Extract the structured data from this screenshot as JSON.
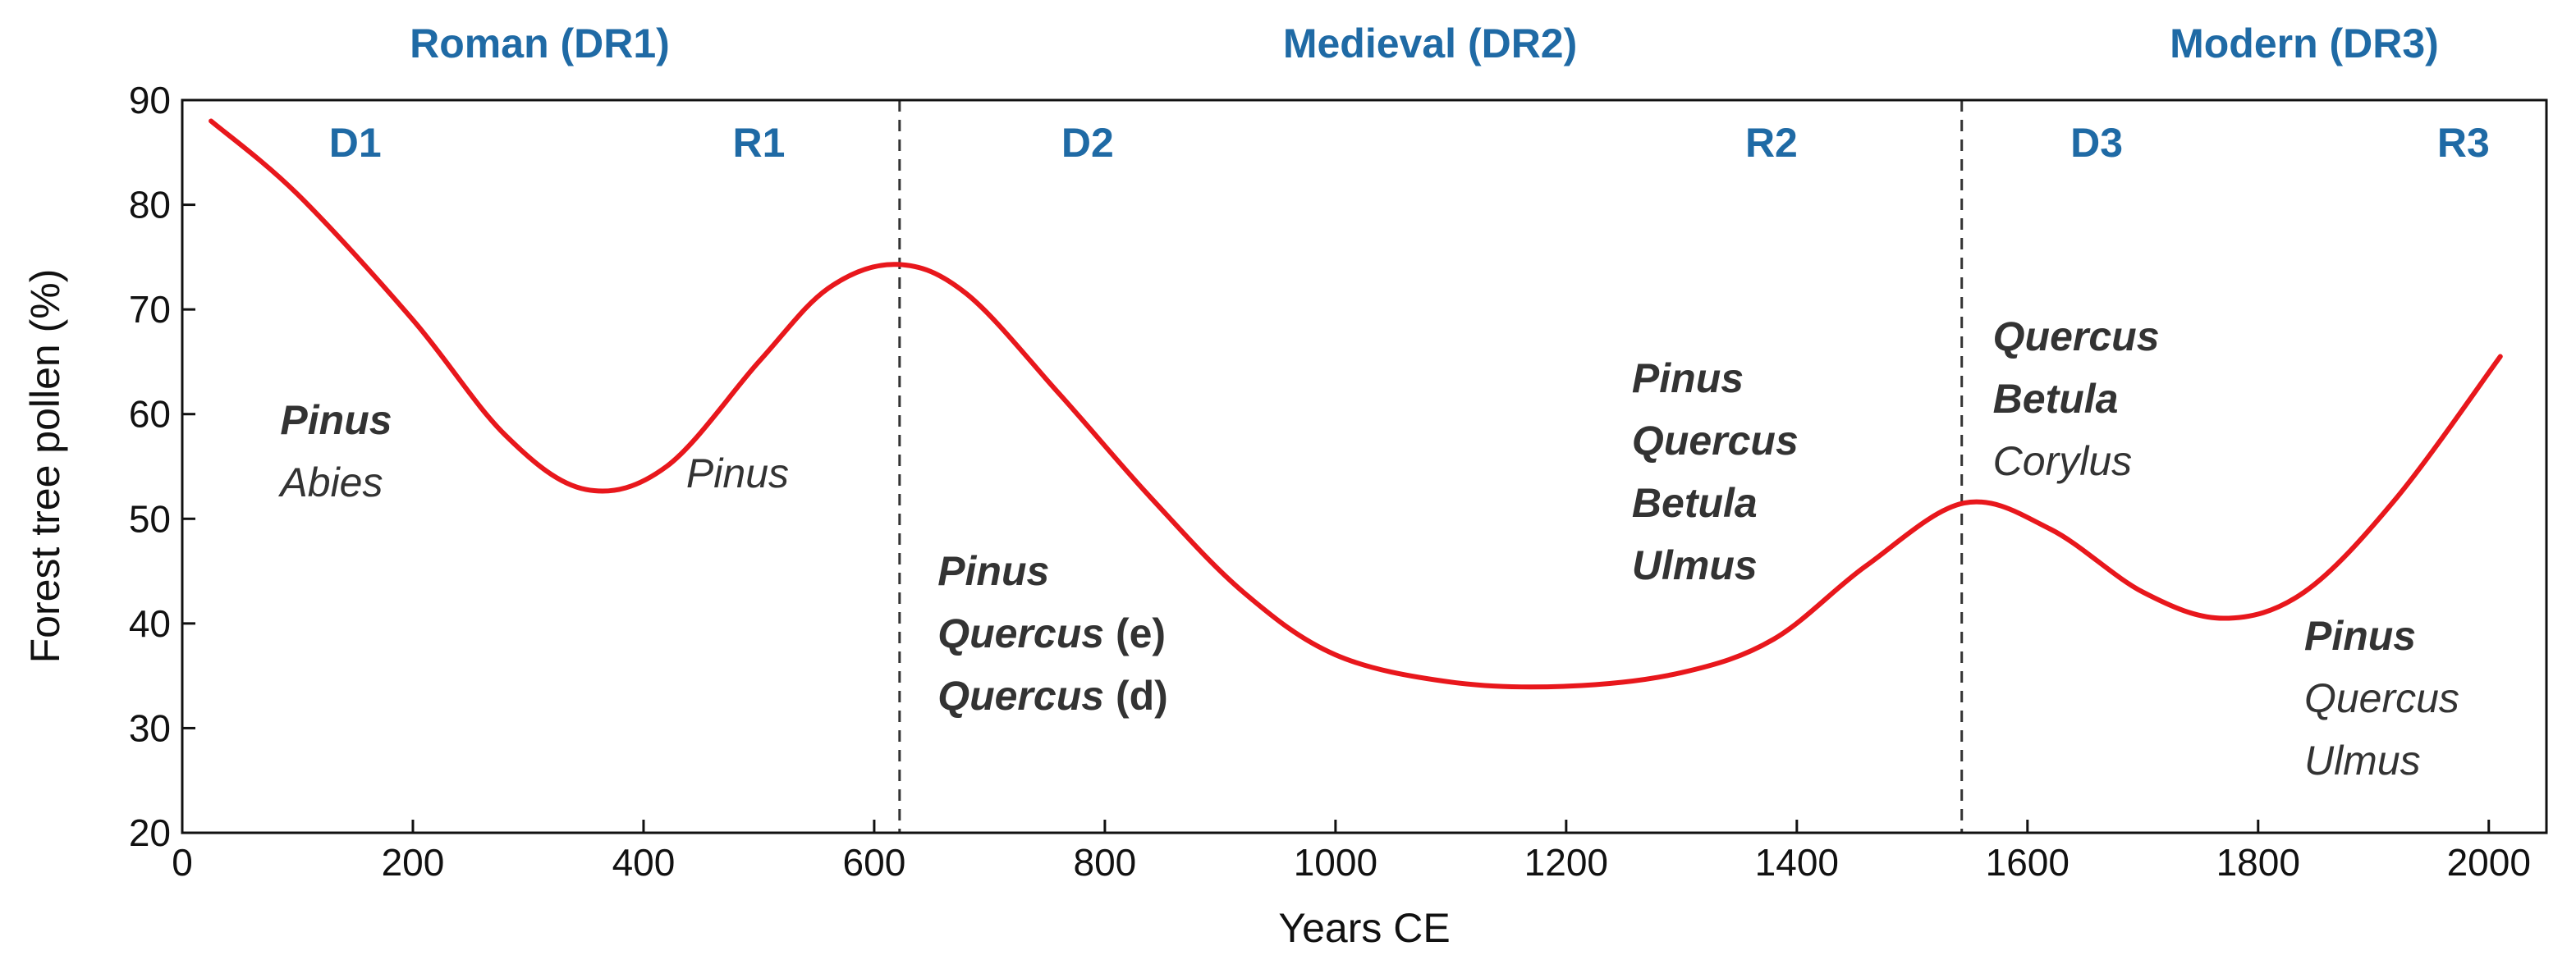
{
  "colors": {
    "curve": "#e8171c",
    "period_text": "#1f6aa5",
    "axis": "#111111",
    "taxa_text": "#333333",
    "divider": "#333333"
  },
  "chart_data": {
    "type": "line",
    "title": "",
    "xlabel": "Years CE",
    "ylabel": "Forest tree pollen (%)",
    "xlim": [
      0,
      2050
    ],
    "ylim": [
      20,
      90
    ],
    "xticks": [
      0,
      200,
      400,
      600,
      800,
      1000,
      1200,
      1400,
      1600,
      1800,
      2000
    ],
    "yticks": [
      20,
      30,
      40,
      50,
      60,
      70,
      80,
      90
    ],
    "grid": false,
    "series": [
      {
        "name": "Forest tree pollen",
        "x": [
          25,
          100,
          200,
          280,
          350,
          420,
          500,
          560,
          620,
          680,
          760,
          840,
          920,
          1000,
          1100,
          1200,
          1300,
          1380,
          1460,
          1545,
          1620,
          1700,
          1770,
          1840,
          1920,
          2010
        ],
        "y": [
          88,
          81,
          69,
          58,
          52.8,
          55,
          65,
          72,
          74.3,
          71.5,
          62,
          52,
          43,
          37,
          34.4,
          34,
          35.3,
          38.5,
          45.5,
          51.5,
          49,
          43,
          40.5,
          43,
          52,
          65.5
        ]
      }
    ],
    "dividers": [
      622,
      1543
    ],
    "periods": [
      {
        "label": "Roman (DR1)",
        "x": 310
      },
      {
        "label": "Medieval (DR2)",
        "x": 1082
      },
      {
        "label": "Modern (DR3)",
        "x": 1840
      }
    ],
    "phases": [
      {
        "label": "D1",
        "x": 150,
        "y": 86
      },
      {
        "label": "R1",
        "x": 500,
        "y": 86
      },
      {
        "label": "D2",
        "x": 785,
        "y": 86
      },
      {
        "label": "R2",
        "x": 1378,
        "y": 86
      },
      {
        "label": "D3",
        "x": 1660,
        "y": 86
      },
      {
        "label": "R3",
        "x": 1978,
        "y": 86
      }
    ],
    "taxa_groups": [
      {
        "name": "d1",
        "x": 85,
        "y": 59.5,
        "lines": [
          {
            "text": "Pinus",
            "bold": true,
            "suffix": ""
          },
          {
            "text": "Abies",
            "bold": false,
            "suffix": ""
          }
        ]
      },
      {
        "name": "r1",
        "x": 437,
        "y": 54.4,
        "lines": [
          {
            "text": "Pinus",
            "bold": false,
            "suffix": ""
          }
        ]
      },
      {
        "name": "d2",
        "x": 655,
        "y": 45.1,
        "lines": [
          {
            "text": "Pinus",
            "bold": true,
            "suffix": ""
          },
          {
            "text": "Quercus",
            "bold": true,
            "suffix": " (e)"
          },
          {
            "text": "Quercus",
            "bold": true,
            "suffix": " (d)"
          }
        ]
      },
      {
        "name": "r2",
        "x": 1257,
        "y": 63.5,
        "lines": [
          {
            "text": "Pinus",
            "bold": true,
            "suffix": ""
          },
          {
            "text": "Quercus",
            "bold": true,
            "suffix": ""
          },
          {
            "text": "Betula",
            "bold": true,
            "suffix": ""
          },
          {
            "text": "Ulmus",
            "bold": true,
            "suffix": ""
          }
        ]
      },
      {
        "name": "d3",
        "x": 1570,
        "y": 67.5,
        "lines": [
          {
            "text": "Quercus",
            "bold": true,
            "suffix": ""
          },
          {
            "text": "Betula",
            "bold": true,
            "suffix": ""
          },
          {
            "text": "Corylus",
            "bold": false,
            "suffix": ""
          }
        ]
      },
      {
        "name": "r3",
        "x": 1840,
        "y": 38.9,
        "lines": [
          {
            "text": "Pinus",
            "bold": true,
            "suffix": ""
          },
          {
            "text": "Quercus",
            "bold": false,
            "suffix": ""
          },
          {
            "text": "Ulmus",
            "bold": false,
            "suffix": ""
          }
        ]
      }
    ]
  }
}
